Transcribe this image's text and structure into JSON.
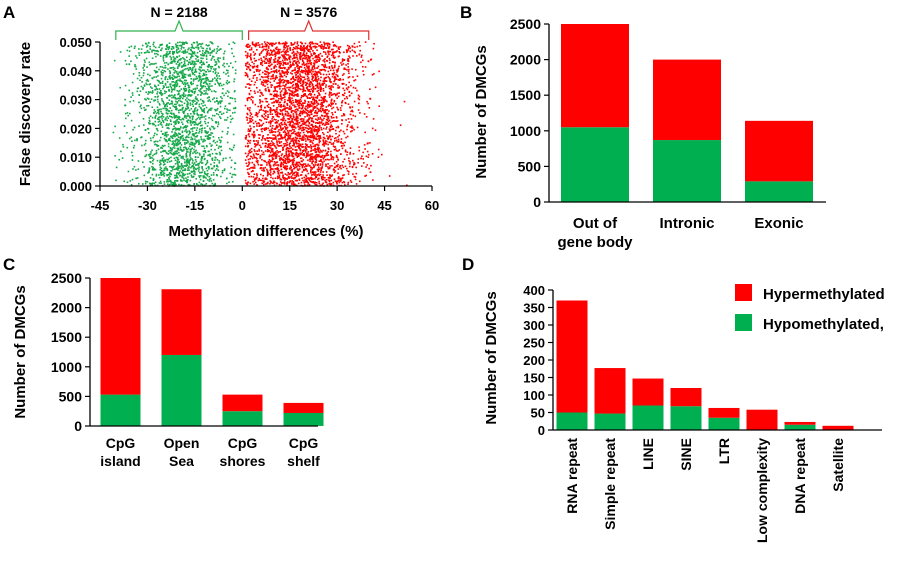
{
  "colors": {
    "hyper": "#ff0000",
    "hypo": "#00b050",
    "scatter_hyper": "#ff0000",
    "scatter_hypo": "#17a84a",
    "bracket_hypo": "#33b34d",
    "bracket_hyper": "#e03030",
    "axis": "#000000"
  },
  "chart_data": [
    {
      "panel": "A",
      "type": "scatter",
      "xlabel": "Methylation differences (%)",
      "ylabel": "False discovery rate",
      "xlim": [
        -45,
        60
      ],
      "ylim": [
        0,
        0.05
      ],
      "xticks": [
        "-45",
        "-30",
        "-15",
        "0",
        "15",
        "30",
        "45",
        "60"
      ],
      "xtick_values": [
        -45,
        -30,
        -15,
        0,
        15,
        30,
        45,
        60
      ],
      "yticks": [
        "0.000",
        "0.010",
        "0.020",
        "0.030",
        "0.040",
        "0.050"
      ],
      "ytick_values": [
        0,
        0.01,
        0.02,
        0.03,
        0.04,
        0.05
      ],
      "annotations": [
        {
          "text": "N = 2188",
          "group": "hypo",
          "x_range": [
            -40,
            0
          ]
        },
        {
          "text": "N = 3576",
          "group": "hyper",
          "x_range": [
            2,
            40
          ]
        }
      ],
      "groups": [
        {
          "name": "hypo",
          "n": 2188,
          "x_mean": -19,
          "x_sd": 7.5,
          "x_min": -41,
          "x_max": -2,
          "y_range": [
            0,
            0.05
          ]
        },
        {
          "name": "hyper",
          "n": 3576,
          "x_mean": 18,
          "x_sd": 9,
          "x_min": 1,
          "x_max": 53,
          "y_range": [
            0,
            0.05
          ]
        }
      ]
    },
    {
      "panel": "B",
      "type": "bar",
      "stacked": true,
      "ylabel": "Number of DMCGs",
      "ylim": [
        0,
        2500
      ],
      "yticks": [
        0,
        500,
        1000,
        1500,
        2000,
        2500
      ],
      "categories": [
        [
          "Out of",
          "gene body"
        ],
        [
          "Intronic"
        ],
        [
          "Exonic"
        ]
      ],
      "series": [
        {
          "name": "Hypomethylated",
          "values": [
            1050,
            870,
            290
          ]
        },
        {
          "name": "Hypermethylated",
          "values": [
            1450,
            1130,
            850
          ]
        }
      ]
    },
    {
      "panel": "C",
      "type": "bar",
      "stacked": true,
      "ylabel": "Number  of DMCGs",
      "ylim": [
        0,
        2500
      ],
      "yticks": [
        0,
        500,
        1000,
        1500,
        2000,
        2500
      ],
      "categories": [
        [
          "CpG",
          "island"
        ],
        [
          "Open",
          "Sea"
        ],
        [
          "CpG",
          "shores"
        ],
        [
          "CpG",
          "shelf"
        ]
      ],
      "series": [
        {
          "name": "Hypomethylated",
          "values": [
            530,
            1200,
            250,
            220
          ]
        },
        {
          "name": "Hypermethylated",
          "values": [
            1970,
            1110,
            280,
            170
          ]
        }
      ]
    },
    {
      "panel": "D",
      "type": "bar",
      "stacked": true,
      "ylabel": "Number of DMCGs",
      "ylim": [
        0,
        400
      ],
      "yticks": [
        0,
        50,
        100,
        150,
        200,
        250,
        300,
        350,
        400
      ],
      "categories": [
        "RNA repeat",
        "Simple repeat",
        "LINE",
        "SINE",
        "LTR",
        "Low complexity",
        "DNA repeat",
        "Satellite"
      ],
      "series": [
        {
          "name": "Hypomethylated",
          "values": [
            50,
            47,
            70,
            68,
            35,
            0,
            15,
            0
          ]
        },
        {
          "name": "Hypermethylated",
          "values": [
            320,
            130,
            77,
            52,
            28,
            58,
            8,
            12
          ]
        }
      ],
      "legend": {
        "position": "top-right",
        "labels": [
          "Hypermethylated",
          "Hypomethylated,"
        ]
      }
    }
  ]
}
